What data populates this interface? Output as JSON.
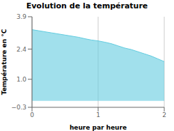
{
  "chart_data": {
    "type": "area",
    "title": "Evolution de la température",
    "xlabel": "heure par heure",
    "ylabel": "Température en °C",
    "x": [
      0,
      0.1,
      0.2,
      0.3,
      0.4,
      0.5,
      0.6,
      0.7,
      0.8,
      0.9,
      1.0,
      1.1,
      1.2,
      1.3,
      1.4,
      1.5,
      1.6,
      1.7,
      1.8,
      1.9,
      2.0
    ],
    "series": [
      {
        "color": "#62cce0",
        "values": [
          3.3,
          3.25,
          3.2,
          3.15,
          3.1,
          3.05,
          3.0,
          2.95,
          2.88,
          2.82,
          2.78,
          2.72,
          2.65,
          2.55,
          2.45,
          2.38,
          2.28,
          2.18,
          2.08,
          1.95,
          1.82
        ]
      }
    ],
    "xlim": [
      0,
      2
    ],
    "ylim": [
      -0.3,
      3.9
    ],
    "xticks": [
      0,
      1,
      2
    ],
    "yticks": [
      {
        "value": -0.3,
        "label": "−0.3"
      },
      {
        "value": 1,
        "label": "1.0"
      },
      2.4,
      3.9
    ],
    "grid": "x"
  }
}
